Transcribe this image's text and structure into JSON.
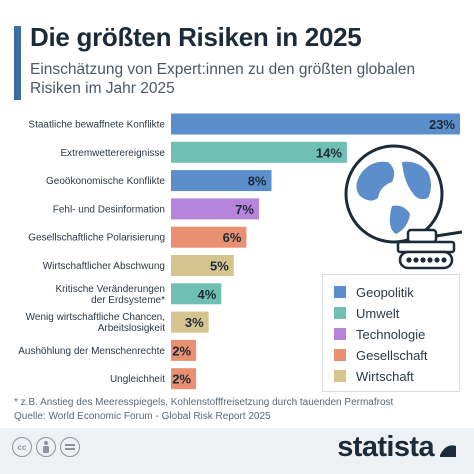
{
  "header": {
    "title": "Die größten Risiken in 2025",
    "subtitle": "Einschätzung von Expert:innen zu den größten globalen Risiken im Jahr 2025"
  },
  "chart_data": {
    "type": "bar",
    "orientation": "horizontal",
    "categories": [
      "Staatliche bewaffnete Konflikte",
      "Extremwetterereignisse",
      "Geoökonomische Konflikte",
      "Fehl- und Desinformation",
      "Gesellschaftliche Polarisierung",
      "Wirtschaftlicher Abschwung",
      "Kritische Veränderungen der Erdsysteme*",
      "Wenig wirtschaftliche Chancen, Arbeitslosigkeit",
      "Aushöhlung der Menschenrechte",
      "Ungleichheit"
    ],
    "category_lines": [
      [
        "Staatliche bewaffnete Konflikte"
      ],
      [
        "Extremwetterereignisse"
      ],
      [
        "Geoökonomische Konflikte"
      ],
      [
        "Fehl- und Desinformation"
      ],
      [
        "Gesellschaftliche Polarisierung"
      ],
      [
        "Wirtschaftlicher Abschwung"
      ],
      [
        "Kritische Veränderungen",
        "der Erdsysteme*"
      ],
      [
        "Wenig wirtschaftliche Chancen,",
        "Arbeitslosigkeit"
      ],
      [
        "Aushöhlung der Menschenrechte"
      ],
      [
        "Ungleichheit"
      ]
    ],
    "values": [
      23,
      14,
      8,
      7,
      6,
      5,
      4,
      3,
      2,
      2
    ],
    "value_labels": [
      "23%",
      "14%",
      "8%",
      "7%",
      "6%",
      "5%",
      "4%",
      "3%",
      "2%",
      "2%"
    ],
    "groups": [
      "Geopolitik",
      "Umwelt",
      "Geopolitik",
      "Technologie",
      "Gesellschaft",
      "Wirtschaft",
      "Umwelt",
      "Wirtschaft",
      "Gesellschaft",
      "Gesellschaft"
    ],
    "unit": "%",
    "xlim": [
      0,
      23
    ],
    "grid": false,
    "legend_position": "bottom-right"
  },
  "legend": {
    "items": [
      {
        "label": "Geopolitik",
        "color": "#5b8ecb"
      },
      {
        "label": "Umwelt",
        "color": "#6fbfb3"
      },
      {
        "label": "Technologie",
        "color": "#b784dc"
      },
      {
        "label": "Gesellschaft",
        "color": "#e8906f"
      },
      {
        "label": "Wirtschaft",
        "color": "#d6c48e"
      }
    ]
  },
  "notes": {
    "footnote": "* z.B. Anstieg des Meeresspiegels, Kohlenstofffreisetzung durch tauenden Permafrost",
    "source": "Quelle: World Economic Forum - Global Risk Report 2025"
  },
  "footer": {
    "brand": "statista",
    "icons": [
      "cc-icon",
      "by-icon",
      "equals-icon"
    ]
  },
  "illustration": {
    "icons": [
      "globe-icon",
      "tank-icon"
    ]
  }
}
